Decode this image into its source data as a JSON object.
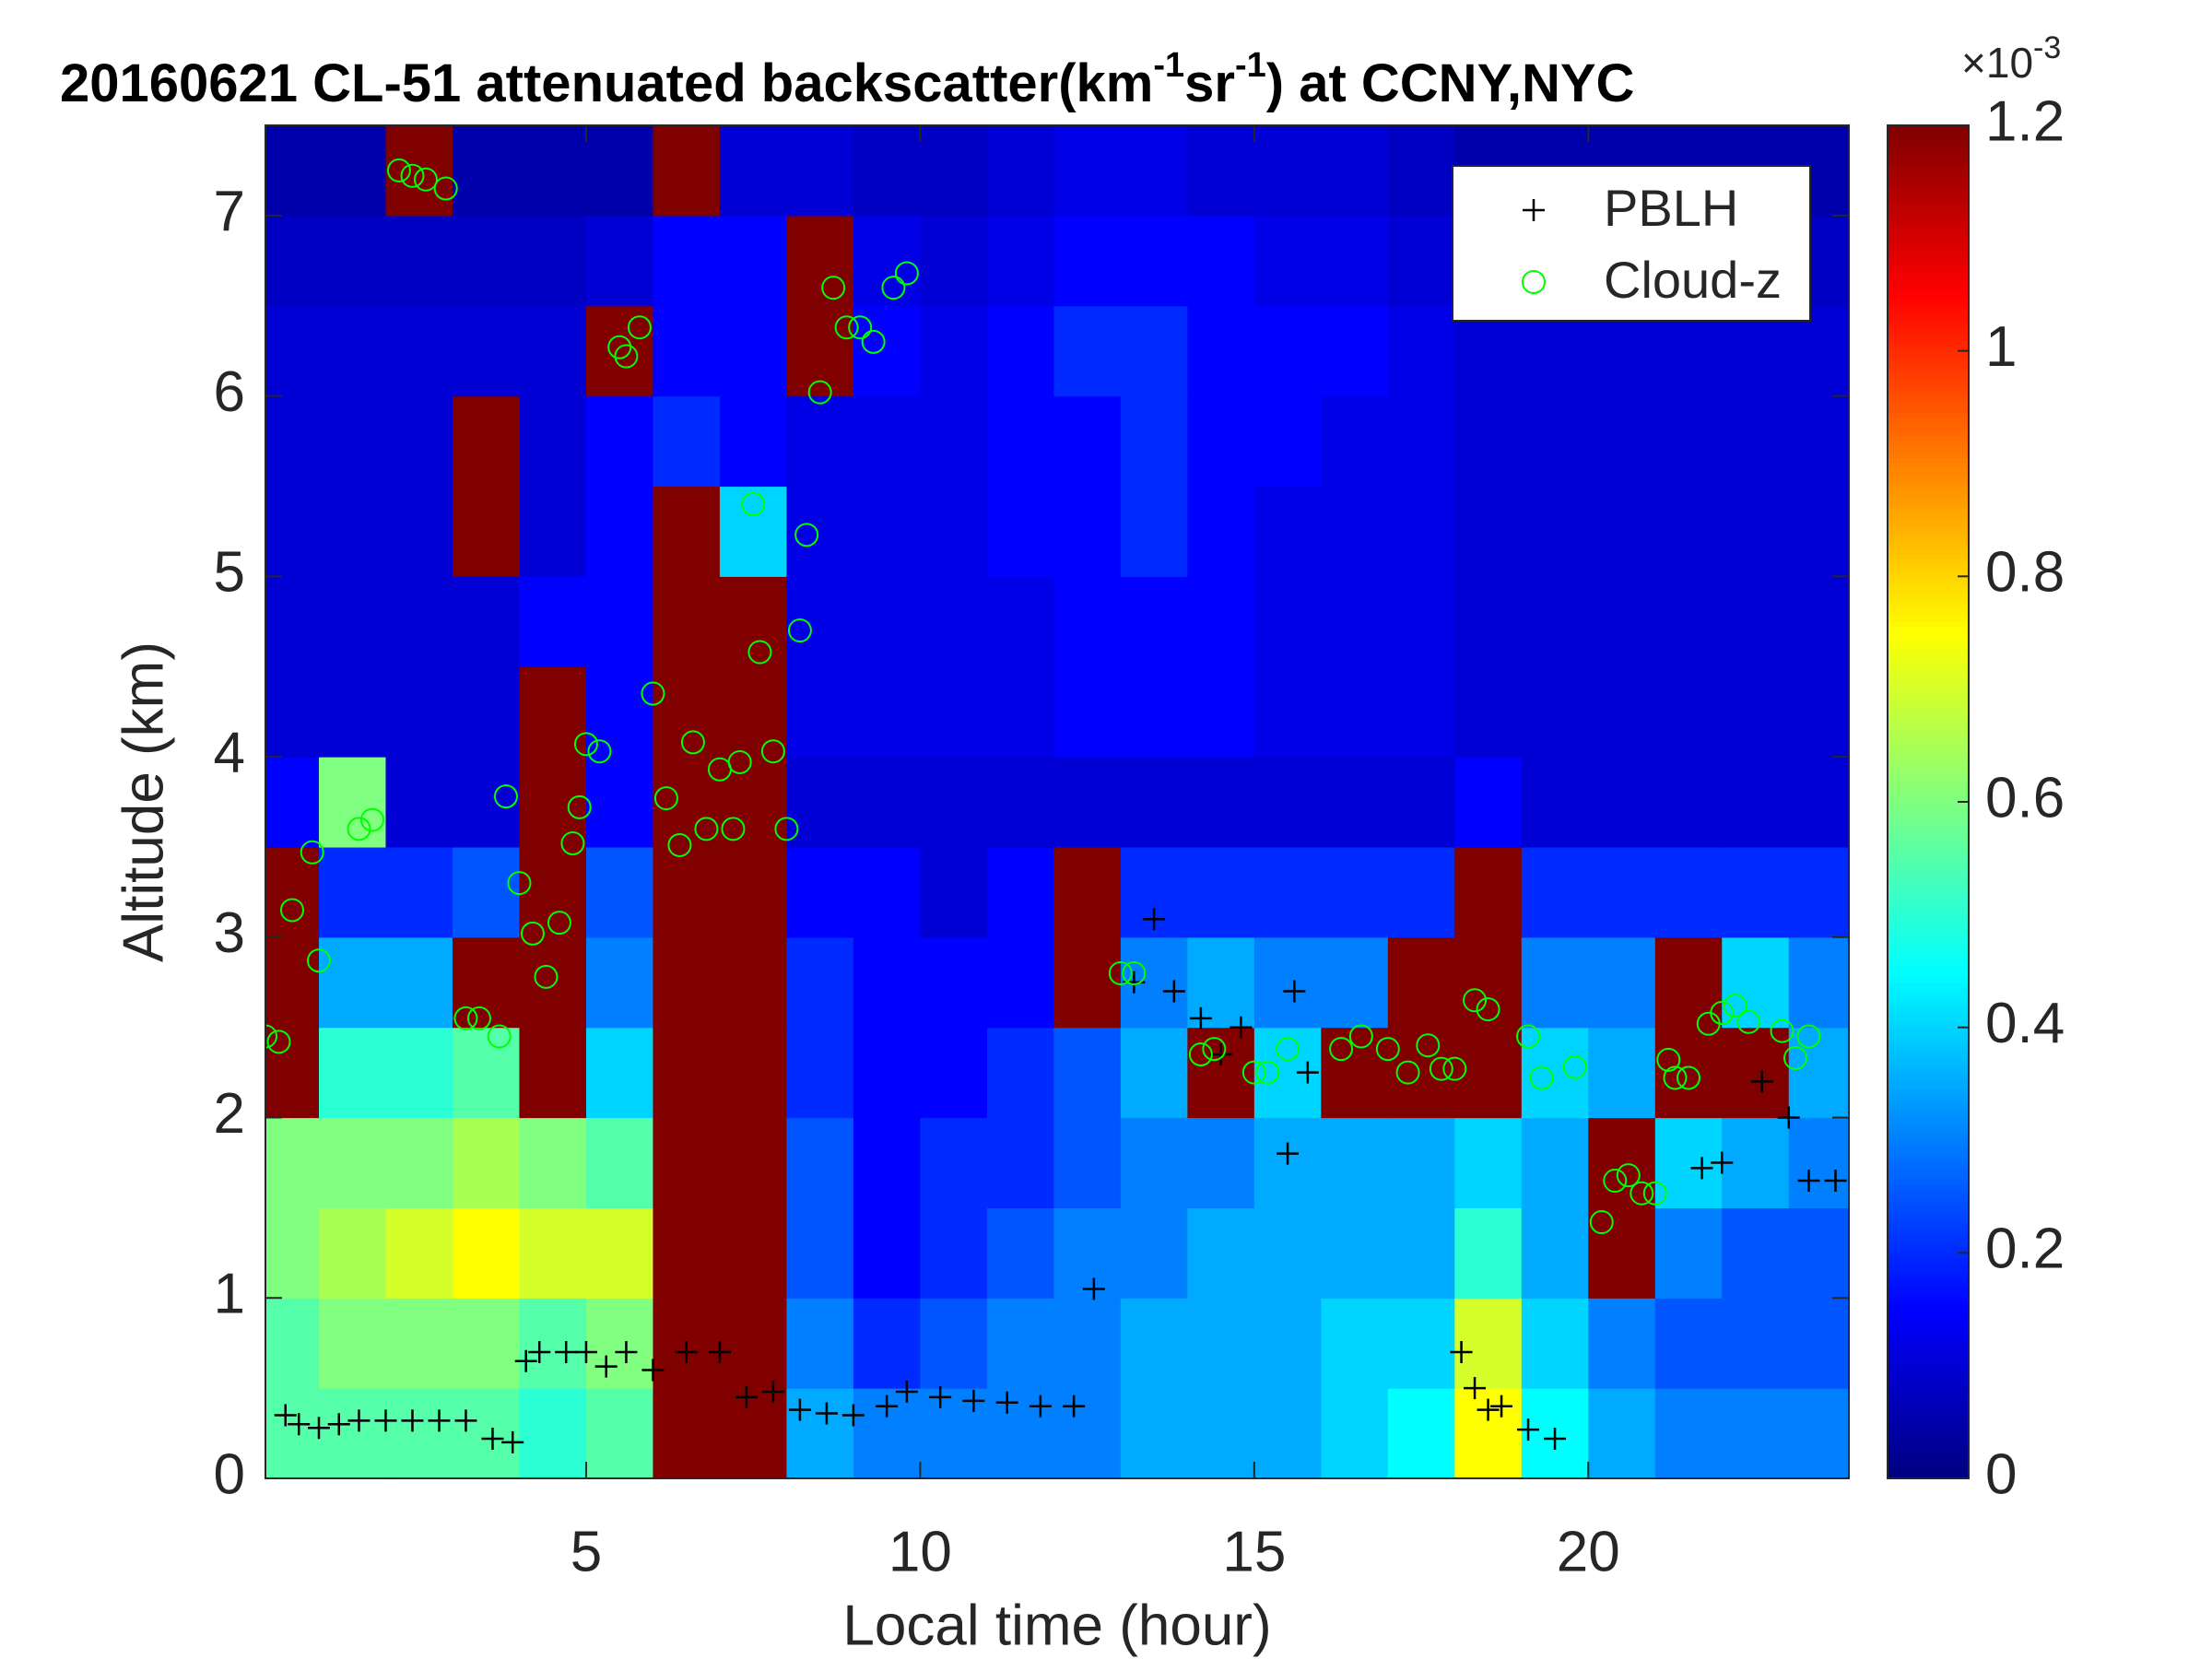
{
  "chart_data": {
    "type": "heatmap",
    "title_parts": [
      "20160621  CL-51 attenuated backscatter(km",
      "-1",
      "sr",
      "-1",
      ") at CCNY,NYC"
    ],
    "xlabel": "Local time (hour)",
    "ylabel": "Altitude (km)",
    "colormap": "jet",
    "clim": [
      0,
      1.2
    ],
    "cticks": [
      0,
      0.2,
      0.4,
      0.6,
      0.8,
      1,
      1.2
    ],
    "colorbar_exponent": [
      "×10",
      "-3"
    ],
    "xlim": [
      0.2,
      23.9
    ],
    "ylim": [
      0,
      7.5
    ],
    "xticks": [
      5,
      10,
      15,
      20
    ],
    "yticks": [
      0,
      1,
      2,
      3,
      4,
      5,
      6,
      7
    ],
    "x": [
      0.5,
      1.5,
      2.5,
      3.5,
      4.5,
      5.5,
      6.5,
      7.5,
      8.5,
      9.5,
      10.5,
      11.5,
      12.5,
      13.5,
      14.5,
      15.5,
      16.5,
      17.5,
      18.5,
      19.5,
      20.5,
      21.5,
      22.5,
      23.5
    ],
    "y": [
      0.25,
      0.75,
      1.25,
      1.75,
      2.25,
      2.75,
      3.25,
      3.75,
      4.25,
      4.75,
      5.25,
      5.75,
      6.25,
      6.75,
      7.25
    ],
    "z": [
      [
        0.55,
        0.55,
        0.55,
        0.55,
        0.5,
        0.55,
        1.2,
        1.2,
        0.35,
        0.3,
        0.3,
        0.3,
        0.3,
        0.35,
        0.35,
        0.35,
        0.4,
        0.45,
        0.75,
        0.45,
        0.35,
        0.3,
        0.3,
        0.3
      ],
      [
        0.55,
        0.6,
        0.6,
        0.6,
        0.55,
        0.6,
        1.2,
        1.2,
        0.3,
        0.2,
        0.25,
        0.3,
        0.3,
        0.35,
        0.35,
        0.35,
        0.4,
        0.4,
        0.7,
        0.4,
        0.3,
        0.25,
        0.25,
        0.25
      ],
      [
        0.6,
        0.65,
        0.7,
        0.75,
        0.7,
        0.7,
        1.2,
        1.2,
        0.25,
        0.15,
        0.2,
        0.25,
        0.3,
        0.3,
        0.35,
        0.35,
        0.35,
        0.35,
        0.5,
        0.35,
        1.2,
        0.3,
        0.25,
        0.25
      ],
      [
        0.6,
        0.6,
        0.6,
        0.65,
        0.6,
        0.55,
        1.2,
        1.2,
        0.25,
        0.15,
        0.2,
        0.2,
        0.25,
        0.3,
        0.3,
        0.35,
        0.35,
        0.35,
        0.4,
        0.35,
        1.2,
        0.4,
        0.35,
        0.3
      ],
      [
        1.2,
        0.5,
        0.5,
        0.55,
        1.2,
        0.4,
        1.2,
        1.2,
        0.2,
        0.15,
        0.15,
        0.2,
        0.25,
        0.35,
        1.2,
        0.4,
        1.2,
        1.2,
        1.2,
        0.4,
        0.35,
        1.2,
        1.2,
        0.35
      ],
      [
        1.2,
        0.35,
        0.35,
        1.2,
        1.2,
        0.3,
        1.2,
        1.2,
        0.2,
        0.15,
        0.15,
        0.15,
        1.2,
        0.3,
        0.35,
        0.3,
        0.3,
        1.2,
        1.2,
        0.3,
        0.3,
        1.2,
        0.4,
        0.3
      ],
      [
        1.2,
        0.2,
        0.2,
        0.25,
        1.2,
        0.25,
        1.2,
        1.2,
        0.15,
        0.15,
        0.1,
        0.15,
        1.2,
        0.2,
        0.2,
        0.2,
        0.2,
        0.2,
        1.2,
        0.2,
        0.2,
        0.2,
        0.2,
        0.2
      ],
      [
        0.15,
        0.6,
        0.1,
        0.1,
        1.2,
        0.15,
        1.2,
        1.2,
        0.1,
        0.1,
        0.1,
        0.1,
        0.1,
        0.1,
        0.1,
        0.1,
        0.1,
        0.1,
        0.15,
        0.1,
        0.1,
        0.1,
        0.1,
        0.1
      ],
      [
        0.1,
        0.1,
        0.1,
        0.1,
        1.2,
        0.15,
        1.2,
        1.2,
        0.12,
        0.12,
        0.12,
        0.12,
        0.15,
        0.15,
        0.15,
        0.12,
        0.12,
        0.12,
        0.1,
        0.1,
        0.1,
        0.1,
        0.1,
        0.1
      ],
      [
        0.1,
        0.1,
        0.1,
        0.1,
        0.15,
        0.15,
        1.2,
        1.2,
        0.12,
        0.12,
        0.12,
        0.12,
        0.15,
        0.15,
        0.15,
        0.12,
        0.12,
        0.12,
        0.1,
        0.1,
        0.1,
        0.1,
        0.1,
        0.1
      ],
      [
        0.1,
        0.1,
        0.1,
        1.2,
        0.1,
        0.15,
        1.2,
        0.4,
        0.12,
        0.12,
        0.12,
        0.15,
        0.15,
        0.2,
        0.15,
        0.12,
        0.12,
        0.12,
        0.1,
        0.1,
        0.1,
        0.1,
        0.1,
        0.1
      ],
      [
        0.1,
        0.1,
        0.1,
        1.2,
        0.1,
        0.15,
        0.2,
        0.15,
        0.12,
        0.12,
        0.12,
        0.15,
        0.15,
        0.2,
        0.15,
        0.15,
        0.12,
        0.12,
        0.1,
        0.1,
        0.1,
        0.1,
        0.1,
        0.1
      ],
      [
        0.1,
        0.1,
        0.1,
        0.1,
        0.1,
        1.2,
        0.15,
        0.15,
        1.2,
        0.15,
        0.12,
        0.15,
        0.2,
        0.2,
        0.15,
        0.15,
        0.15,
        0.12,
        0.1,
        0.1,
        0.1,
        0.1,
        0.1,
        0.1
      ],
      [
        0.08,
        0.08,
        0.08,
        0.08,
        0.08,
        0.1,
        0.15,
        0.15,
        1.2,
        0.12,
        0.1,
        0.12,
        0.15,
        0.15,
        0.15,
        0.12,
        0.12,
        0.1,
        0.08,
        0.08,
        0.08,
        0.08,
        0.08,
        0.08
      ],
      [
        0.05,
        0.05,
        1.2,
        0.05,
        0.05,
        0.05,
        1.2,
        0.1,
        0.1,
        0.08,
        0.08,
        0.1,
        0.12,
        0.12,
        0.1,
        0.1,
        0.1,
        0.08,
        0.05,
        0.05,
        0.05,
        0.05,
        0.05,
        0.05
      ]
    ],
    "legend": "upper right",
    "series": [
      {
        "name": "PBLH",
        "color": "#000000",
        "marker": "+",
        "x": [
          0.5,
          0.7,
          1,
          1.3,
          1.6,
          2,
          2.4,
          2.8,
          3.2,
          3.6,
          3.9,
          4.1,
          4.3,
          4.7,
          5,
          5.3,
          5.6,
          6,
          6.5,
          7,
          7.4,
          7.8,
          8.2,
          8.6,
          9,
          9.5,
          9.8,
          10.3,
          10.8,
          11.3,
          11.8,
          12.3,
          12.6,
          13.2,
          13.5,
          13.8,
          14.2,
          14.5,
          14.8,
          15.5,
          15.6,
          15.8,
          18.1,
          18.3,
          18.5,
          18.7,
          19.1,
          19.5,
          21.7,
          22,
          22.6,
          23,
          23.3,
          23.7
        ],
        "values": [
          0.35,
          0.3,
          0.28,
          0.3,
          0.32,
          0.32,
          0.32,
          0.32,
          0.32,
          0.22,
          0.2,
          0.65,
          0.7,
          0.7,
          0.7,
          0.62,
          0.7,
          0.6,
          0.7,
          0.7,
          0.45,
          0.48,
          0.38,
          0.36,
          0.35,
          0.4,
          0.48,
          0.45,
          0.43,
          0.42,
          0.4,
          0.4,
          1.05,
          2.75,
          3.1,
          2.7,
          2.55,
          2.35,
          2.5,
          1.8,
          2.7,
          2.25,
          0.7,
          0.5,
          0.38,
          0.4,
          0.27,
          0.22,
          1.72,
          1.75,
          2.2,
          2,
          1.65,
          1.65
        ]
      },
      {
        "name": "Cloud-z",
        "color": "#00ff00",
        "marker": "o",
        "x": [
          0.2,
          0.4,
          0.6,
          0.9,
          1,
          1.6,
          1.8,
          2.2,
          2.4,
          2.6,
          2.9,
          3.2,
          3.4,
          3.7,
          3.8,
          4,
          4.2,
          4.4,
          4.6,
          4.8,
          4.9,
          5,
          5.2,
          5.5,
          5.6,
          5.8,
          6,
          6.2,
          6.4,
          6.6,
          6.8,
          7,
          7.2,
          7.3,
          7.5,
          7.6,
          7.8,
          8,
          8.2,
          8.3,
          8.5,
          8.7,
          8.9,
          9.1,
          9.3,
          9.6,
          9.8,
          13,
          13.2,
          14.2,
          14.4,
          15,
          15.2,
          15.5,
          16.3,
          16.6,
          17,
          17.3,
          17.6,
          17.8,
          18,
          18.3,
          18.5,
          19.1,
          19.3,
          19.8,
          20.2,
          20.4,
          20.6,
          20.8,
          21,
          21.2,
          21.3,
          21.5,
          21.8,
          22,
          22.2,
          22.4,
          22.9,
          23.1,
          23.3
        ],
        "values": [
          2.45,
          2.42,
          3.15,
          3.47,
          2.87,
          3.6,
          3.65,
          7.25,
          7.22,
          7.2,
          7.15,
          2.55,
          2.55,
          2.45,
          3.78,
          3.3,
          3.02,
          2.78,
          3.08,
          3.52,
          3.72,
          4.07,
          4.03,
          6.27,
          6.22,
          6.38,
          4.35,
          3.77,
          3.51,
          4.08,
          3.6,
          3.93,
          3.6,
          3.97,
          5.4,
          4.58,
          4.03,
          3.6,
          4.7,
          5.23,
          6.02,
          6.6,
          6.38,
          6.38,
          6.3,
          6.6,
          6.68,
          2.8,
          2.8,
          2.35,
          2.38,
          2.25,
          2.25,
          2.38,
          2.38,
          2.45,
          2.38,
          2.25,
          2.4,
          2.27,
          2.27,
          2.65,
          2.6,
          2.45,
          2.22,
          2.28,
          1.42,
          1.65,
          1.68,
          1.58,
          1.58,
          2.32,
          2.22,
          2.22,
          2.52,
          2.58,
          2.62,
          2.53,
          2.48,
          2.33,
          2.45
        ]
      }
    ]
  }
}
